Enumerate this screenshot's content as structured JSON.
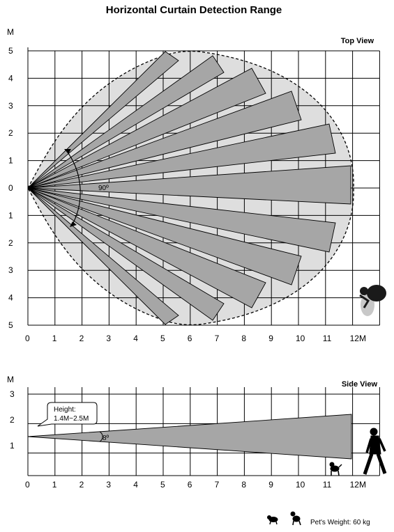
{
  "title": "Horizontal Curtain  Detection Range",
  "top_view": {
    "label": "Top View",
    "y_unit": "M",
    "y_ticks": [
      "5",
      "4",
      "3",
      "2",
      "1",
      "0",
      "1",
      "2",
      "3",
      "4",
      "5"
    ],
    "x_ticks": [
      "0",
      "1",
      "2",
      "3",
      "4",
      "5",
      "6",
      "7",
      "8",
      "9",
      "10",
      "11",
      "12M"
    ],
    "angle_label": "90º",
    "beams_per_side": 6
  },
  "side_view": {
    "label": "Side View",
    "y_unit": "M",
    "y_ticks": [
      "3",
      "2",
      "1"
    ],
    "x_ticks": [
      "0",
      "1",
      "2",
      "3",
      "4",
      "5",
      "6",
      "7",
      "8",
      "9",
      "10",
      "11",
      "12M"
    ],
    "height_label_line1": "Height:",
    "height_label_line2": "1.4M~2.5M",
    "angle_label": "8º"
  },
  "footer": {
    "pet_weight": "Pet's Weight: 60 kg"
  },
  "colors": {
    "beam": "#a6a6a6",
    "zone": "#dedede",
    "grid": "#000000"
  }
}
